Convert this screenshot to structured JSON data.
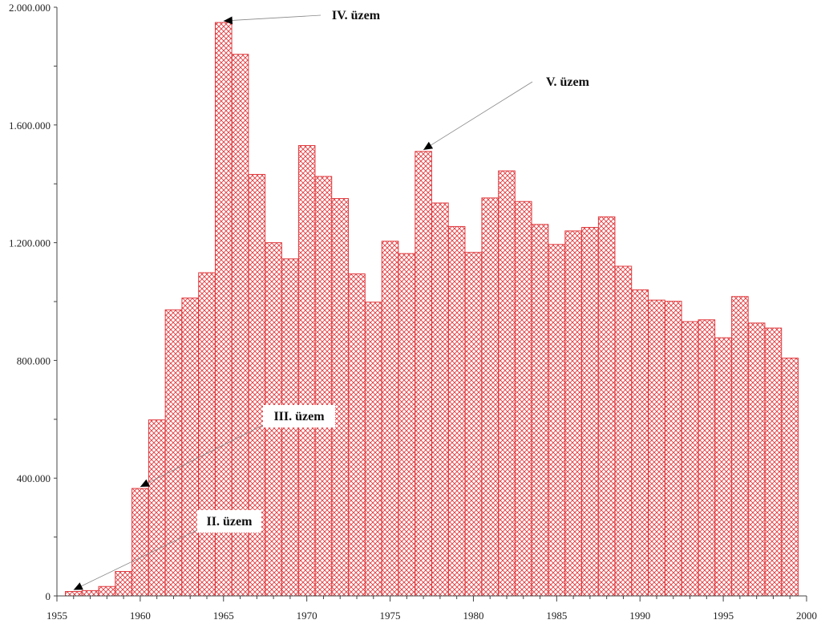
{
  "chart_data": {
    "type": "bar",
    "title": "",
    "xlabel": "",
    "ylabel": "",
    "xlim": [
      1955,
      2000
    ],
    "ylim": [
      0,
      2000000
    ],
    "x_ticks": [
      1955,
      1960,
      1965,
      1970,
      1975,
      1980,
      1985,
      1990,
      1995,
      2000
    ],
    "x_tick_labels": [
      "1955",
      "1960",
      "1965",
      "1970",
      "1975",
      "1980",
      "1985",
      "1990",
      "1995",
      "2000"
    ],
    "y_ticks": [
      0,
      400000,
      800000,
      1200000,
      1600000,
      2000000
    ],
    "y_tick_labels": [
      "0",
      "400.000",
      "800.000",
      "1.200.000",
      "1.600.000",
      "2.000.000"
    ],
    "grid": false,
    "bar_color": "#e0393d",
    "years": [
      1956,
      1957,
      1958,
      1959,
      1960,
      1961,
      1962,
      1963,
      1964,
      1965,
      1966,
      1967,
      1968,
      1969,
      1970,
      1971,
      1972,
      1973,
      1974,
      1975,
      1976,
      1977,
      1978,
      1979,
      1980,
      1981,
      1982,
      1983,
      1984,
      1985,
      1986,
      1987,
      1988,
      1989,
      1990,
      1991,
      1992,
      1993,
      1994,
      1995,
      1996,
      1997,
      1998,
      1999
    ],
    "values": [
      15000,
      18000,
      32000,
      83000,
      365000,
      598000,
      972000,
      1012000,
      1098000,
      1948000,
      1840000,
      1432000,
      1200000,
      1145000,
      1530000,
      1425000,
      1350000,
      1094000,
      998000,
      1205000,
      1163000,
      1510000,
      1335000,
      1255000,
      1167000,
      1352000,
      1444000,
      1340000,
      1262000,
      1194000,
      1240000,
      1252000,
      1288000,
      1120000,
      1040000,
      1005000,
      1001000,
      932000,
      938000,
      877000,
      1017000,
      927000,
      910000,
      808000
    ],
    "annotations": [
      {
        "text": "II. üzem",
        "year": 1956,
        "value": 15000,
        "boxed": true
      },
      {
        "text": "III. üzem",
        "year": 1960,
        "value": 365000,
        "boxed": true
      },
      {
        "text": "IV. üzem",
        "year": 1965,
        "value": 1948000,
        "boxed": false
      },
      {
        "text": "V. üzem",
        "year": 1977,
        "value": 1510000,
        "boxed": false
      }
    ]
  }
}
